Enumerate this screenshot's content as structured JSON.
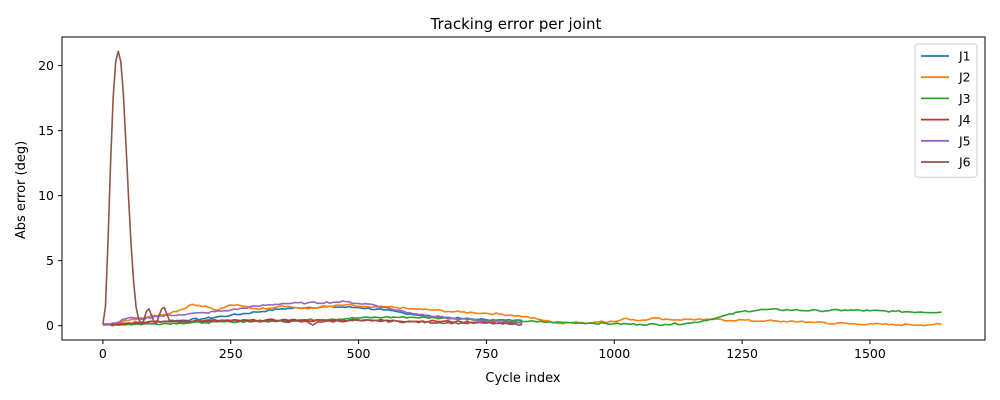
{
  "chart_data": {
    "type": "line",
    "title": "Tracking error per joint",
    "xlabel": "Cycle index",
    "ylabel": "Abs error (deg)",
    "xlim": [
      -80,
      1725
    ],
    "ylim": [
      -1.1,
      22.2
    ],
    "xticks": [
      0,
      250,
      500,
      750,
      1000,
      1250,
      1500
    ],
    "yticks": [
      0,
      5,
      10,
      15,
      20
    ],
    "grid": false,
    "legend": "top-right",
    "series": [
      {
        "name": "J1",
        "color": "#1f77b4",
        "x": [
          0,
          25,
          50,
          75,
          100,
          150,
          200,
          250,
          300,
          350,
          400,
          450,
          500,
          550,
          600,
          650,
          700,
          750,
          800,
          820
        ],
        "y": [
          0.1,
          0.15,
          0.2,
          0.25,
          0.3,
          0.4,
          0.55,
          0.8,
          1.05,
          1.3,
          1.4,
          1.45,
          1.4,
          1.2,
          0.9,
          0.7,
          0.55,
          0.45,
          0.4,
          0.4
        ]
      },
      {
        "name": "J2",
        "color": "#ff7f0e",
        "x": [
          0,
          25,
          50,
          75,
          100,
          125,
          150,
          175,
          200,
          225,
          250,
          275,
          300,
          325,
          350,
          375,
          400,
          425,
          450,
          475,
          500,
          525,
          550,
          575,
          600,
          625,
          650,
          675,
          700,
          725,
          750,
          775,
          800,
          825,
          850,
          875,
          900,
          925,
          950,
          975,
          1000,
          1025,
          1050,
          1075,
          1100,
          1125,
          1150,
          1175,
          1200,
          1225,
          1250,
          1275,
          1300,
          1325,
          1350,
          1375,
          1400,
          1425,
          1450,
          1475,
          1500,
          1525,
          1550,
          1575,
          1600,
          1625,
          1640
        ],
        "y": [
          0.1,
          0.2,
          0.4,
          0.6,
          0.8,
          0.9,
          1.2,
          1.65,
          1.5,
          1.2,
          1.6,
          1.5,
          1.3,
          1.35,
          1.55,
          1.4,
          1.3,
          1.45,
          1.5,
          1.6,
          1.5,
          1.4,
          1.45,
          1.4,
          1.3,
          1.25,
          1.2,
          1.1,
          1.05,
          1.0,
          0.95,
          0.9,
          0.8,
          0.7,
          0.5,
          0.3,
          0.15,
          0.3,
          0.2,
          0.35,
          0.3,
          0.55,
          0.4,
          0.6,
          0.5,
          0.45,
          0.5,
          0.45,
          0.5,
          0.4,
          0.45,
          0.35,
          0.4,
          0.3,
          0.35,
          0.25,
          0.3,
          0.15,
          0.2,
          0.1,
          0.15,
          0.1,
          0.05,
          0.1,
          0.05,
          0.1,
          0.1
        ]
      },
      {
        "name": "J3",
        "color": "#2ca02c",
        "x": [
          0,
          50,
          100,
          150,
          200,
          250,
          300,
          350,
          400,
          450,
          500,
          550,
          600,
          650,
          700,
          750,
          800,
          850,
          900,
          950,
          1000,
          1050,
          1100,
          1150,
          1200,
          1250,
          1300,
          1350,
          1400,
          1450,
          1500,
          1550,
          1600,
          1640
        ],
        "y": [
          0.05,
          0.1,
          0.15,
          0.2,
          0.25,
          0.3,
          0.35,
          0.4,
          0.45,
          0.5,
          0.6,
          0.65,
          0.65,
          0.6,
          0.55,
          0.45,
          0.4,
          0.3,
          0.25,
          0.2,
          0.15,
          0.1,
          0.1,
          0.2,
          0.6,
          1.1,
          1.25,
          1.2,
          1.15,
          1.2,
          1.15,
          1.1,
          1.05,
          1.05
        ]
      },
      {
        "name": "J4",
        "color": "#d62728",
        "x": [
          0,
          50,
          100,
          150,
          200,
          250,
          300,
          350,
          400,
          450,
          500,
          550,
          600,
          650,
          700,
          750,
          800,
          820
        ],
        "y": [
          0.1,
          0.2,
          0.3,
          0.35,
          0.4,
          0.4,
          0.4,
          0.45,
          0.4,
          0.4,
          0.45,
          0.4,
          0.35,
          0.35,
          0.3,
          0.25,
          0.2,
          0.2
        ]
      },
      {
        "name": "J5",
        "color": "#9467bd",
        "x": [
          0,
          25,
          50,
          75,
          100,
          150,
          200,
          250,
          300,
          350,
          400,
          450,
          475,
          500,
          525,
          550,
          600,
          650,
          700,
          750,
          800,
          820
        ],
        "y": [
          0.1,
          0.2,
          0.6,
          0.5,
          0.7,
          0.85,
          1.0,
          1.2,
          1.5,
          1.7,
          1.75,
          1.8,
          1.85,
          1.7,
          1.65,
          1.4,
          1.0,
          0.7,
          0.5,
          0.35,
          0.3,
          0.3
        ]
      },
      {
        "name": "J6",
        "color": "#8c564b",
        "x": [
          0,
          5,
          10,
          15,
          20,
          25,
          30,
          35,
          40,
          45,
          50,
          55,
          60,
          65,
          70,
          75,
          80,
          85,
          90,
          95,
          100,
          105,
          110,
          115,
          120,
          125,
          130,
          150,
          200,
          300,
          400,
          410,
          420,
          500,
          600,
          700,
          750,
          800,
          820
        ],
        "y": [
          0.1,
          1.5,
          6.5,
          12.5,
          17.5,
          20.3,
          21.1,
          20.3,
          17.8,
          14.0,
          10.0,
          6.3,
          3.4,
          1.4,
          0.5,
          0.1,
          0.4,
          1.1,
          1.3,
          0.8,
          0.3,
          0.2,
          0.8,
          1.3,
          1.4,
          0.9,
          0.4,
          0.3,
          0.35,
          0.35,
          0.3,
          0.05,
          0.3,
          0.4,
          0.3,
          0.2,
          0.2,
          0.1,
          0.1
        ]
      }
    ]
  }
}
